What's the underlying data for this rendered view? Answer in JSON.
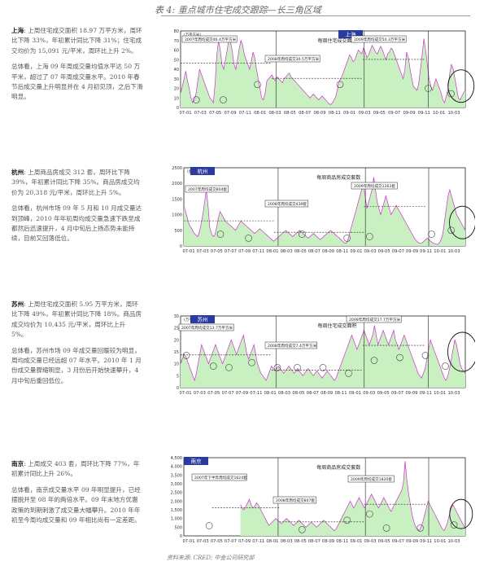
{
  "page": {
    "title": "表 4: 重点城市住宅成交跟踪—长三角区域",
    "source": "资料来源: CRED; 中金公司研究部"
  },
  "colors": {
    "fill": "#c8f0c0",
    "line": "#d030d0",
    "stroke": "#222222",
    "badge": "#2a3aa0"
  },
  "sections": [
    {
      "key": "shanghai",
      "city_label": "上海",
      "paragraphs": [
        {
          "lead": "上海",
          "text": ": 上周住宅成交面积 18.97 万平方米，周环比下降 33%，年初累计同比下降 31%；住宅成交均价为 15,091 元/平米，周环比上升 2%。"
        },
        {
          "lead": "",
          "text": "总体看，上海 09 年周成交量均值水平达 50 万平米，超过了 07 年周成交量水平。2010 年春节后成交量上升明显并在 4 月初见顶，之后下滑明显。"
        }
      ],
      "chart_data": {
        "type": "area",
        "title": "每周住宅成交面积",
        "unit": "(万平方米)",
        "yticks": [
          "80",
          "70",
          "60",
          "50",
          "40",
          "30",
          "20",
          "10",
          "0"
        ],
        "ylim": [
          0,
          80
        ],
        "x_labels": [
          "07-01",
          "07-03",
          "07-05",
          "07-09",
          "07-11",
          "08-01",
          "08-03",
          "08-05",
          "08-07",
          "08-09",
          "08-11",
          "09-01",
          "09-03",
          "09-05",
          "09-07",
          "09-09",
          "09-11",
          "10-01",
          "10-03"
        ],
        "annotations": [
          "2007年周均成交46.4万平方米",
          "2008年周均成交30.5万平方米",
          "2009年周均成交50.3万平方米"
        ],
        "averages": [
          46.4,
          30.5,
          50.3
        ],
        "values": [
          15,
          22,
          30,
          38,
          28,
          20,
          10,
          5,
          8,
          15,
          28,
          40,
          35,
          30,
          25,
          20,
          15,
          10,
          8,
          5,
          25,
          55,
          70,
          60,
          45,
          40,
          50,
          60,
          72,
          68,
          58,
          45,
          40,
          50,
          62,
          70,
          65,
          55,
          50,
          45,
          40,
          48,
          58,
          52,
          40,
          30,
          20,
          10,
          8,
          15,
          28,
          30,
          32,
          34,
          30,
          28,
          32,
          30,
          28,
          26,
          30,
          32,
          34,
          36,
          32,
          30,
          28,
          26,
          24,
          22,
          20,
          18,
          16,
          14,
          12,
          10,
          12,
          14,
          12,
          10,
          8,
          10,
          12,
          10,
          8,
          6,
          4,
          3,
          5,
          8,
          12,
          20,
          28,
          30,
          35,
          40,
          45,
          50,
          55,
          52,
          48,
          50,
          55,
          60,
          58,
          56,
          62,
          58,
          52,
          55,
          60,
          65,
          62,
          58,
          56,
          60,
          64,
          60,
          55,
          50,
          56,
          58,
          62,
          60,
          55,
          50,
          45,
          40,
          35,
          30,
          40,
          58,
          52,
          40,
          30,
          22,
          20,
          18,
          25,
          40,
          55,
          72,
          60,
          45,
          30,
          22,
          18,
          24,
          30,
          25,
          20,
          15,
          8,
          5,
          12,
          20,
          36,
          45,
          40,
          30,
          20,
          10,
          8,
          12,
          15,
          19
        ]
      }
    },
    {
      "key": "hangzhou",
      "city_label": "杭州",
      "paragraphs": [
        {
          "lead": "杭州",
          "text": ": 上周商品房成交 312 套，周环比下降 39%，年初累计同比下降 35%。商品房成交均价为 20,318 元/平米，周环比上升 5%。"
        },
        {
          "lead": "",
          "text": "总体看，杭州市场 09 年 5 月和 10 月成交量达到顶峰，2010 年年初周均成交量急速下跌至成都然后迅速提升，4 月中旬后上扬态势未能持续，目前又回落低位。"
        }
      ],
      "chart_data": {
        "type": "area",
        "title": "每周商品房成交套数",
        "unit": "(套数)",
        "yticks": [
          "2500",
          "2000",
          "1500",
          "1000",
          "500",
          "0"
        ],
        "ylim": [
          0,
          2500
        ],
        "x_labels": [
          "07-01",
          "07-03",
          "07-05",
          "07-07",
          "07-09",
          "07-11",
          "08-01",
          "08-03",
          "08-05",
          "08-07",
          "08-09",
          "08-11",
          "09-01",
          "09-03",
          "09-05",
          "09-07",
          "09-09",
          "09-11",
          "10-01",
          "10-03"
        ],
        "annotations": [
          "2007年周均成交804套",
          "2008年周均成交439套",
          "2009年周均成交1263套"
        ],
        "averages": [
          804,
          439,
          1263
        ],
        "values": [
          1300,
          1100,
          900,
          700,
          600,
          500,
          400,
          350,
          300,
          450,
          700,
          1000,
          1400,
          1800,
          1300,
          600,
          400,
          300,
          350,
          600,
          900,
          1100,
          1000,
          900,
          800,
          750,
          700,
          650,
          600,
          550,
          500,
          600,
          700,
          800,
          750,
          700,
          650,
          600,
          550,
          500,
          450,
          400,
          450,
          500,
          550,
          500,
          450,
          400,
          350,
          300,
          250,
          200,
          150,
          200,
          250,
          300,
          350,
          400,
          450,
          500,
          450,
          400,
          350,
          300,
          350,
          400,
          450,
          500,
          450,
          400,
          350,
          300,
          250,
          300,
          350,
          400,
          350,
          300,
          250,
          200,
          250,
          300,
          350,
          400,
          450,
          500,
          450,
          400,
          350,
          300,
          250,
          200,
          150,
          100,
          80,
          200,
          400,
          600,
          800,
          1000,
          1200,
          1400,
          1600,
          1800,
          2000,
          1600,
          1200,
          1400,
          1600,
          1800,
          2200,
          1800,
          1400,
          1200,
          1000,
          1200,
          1400,
          1600,
          1400,
          1200,
          1000,
          1100,
          1200,
          1300,
          1200,
          1100,
          1000,
          900,
          800,
          700,
          600,
          500,
          400,
          300,
          200,
          150,
          100,
          80,
          100,
          150,
          200,
          250,
          200,
          150,
          100,
          80,
          60,
          50,
          100,
          200,
          400,
          800,
          1200,
          1600,
          1800,
          1600,
          1400,
          1200,
          1000,
          900,
          800,
          700,
          600,
          500
        ]
      }
    },
    {
      "key": "suzhou",
      "city_label": "苏州",
      "paragraphs": [
        {
          "lead": "苏州",
          "text": ": 上周住宅成交面积 5.95 万平方米，周环比下降 49%，年初累计同比下降 18%。商品房成交均价为 10,435 元/平米，周环比上升 5%。"
        },
        {
          "lead": "",
          "text": "总体看，苏州市场 09 年成交量回暖较为明显，周均成交量已经远超 07 年水平。2010 年 1 月份成交量骤缩明显，3 月份后开始快速攀升，4 月中旬后重回低位。"
        }
      ],
      "chart_data": {
        "type": "area",
        "title": "每周住宅成交面积",
        "unit": "(万平方米)",
        "yticks": [
          "30",
          "25",
          "20",
          "15",
          "10",
          "5",
          "0"
        ],
        "ylim": [
          0,
          30
        ],
        "x_labels": [
          "07-01",
          "07-03",
          "07-05",
          "07-07",
          "07-09",
          "07-11",
          "08-01",
          "08-03",
          "08-05",
          "08-07",
          "08-09",
          "08-11",
          "09-01",
          "09-03",
          "09-05",
          "09-07",
          "09-09",
          "09-11",
          "10-01",
          "10-03"
        ],
        "annotations": [
          "2007年周均成交13.7万平方米",
          "2008年周均成交7.4万平方米",
          "2009年周均成交17.7万平方米"
        ],
        "averages": [
          13.7,
          7.4,
          17.7
        ],
        "values": [
          10,
          12,
          14,
          13,
          11,
          9,
          7,
          5,
          3,
          6,
          10,
          14,
          18,
          16,
          14,
          12,
          10,
          12,
          14,
          16,
          18,
          16,
          14,
          12,
          10,
          12,
          14,
          16,
          18,
          20,
          18,
          16,
          14,
          16,
          18,
          20,
          22,
          18,
          14,
          12,
          14,
          16,
          18,
          14,
          10,
          8,
          6,
          5,
          4,
          3,
          5,
          7,
          9,
          8,
          7,
          8,
          9,
          8,
          7,
          6,
          7,
          8,
          9,
          8,
          7,
          6,
          7,
          8,
          7,
          6,
          5,
          6,
          7,
          8,
          7,
          6,
          5,
          6,
          7,
          6,
          5,
          4,
          5,
          6,
          7,
          6,
          5,
          4,
          3,
          4,
          6,
          8,
          10,
          12,
          14,
          16,
          18,
          20,
          22,
          20,
          18,
          16,
          18,
          20,
          22,
          24,
          22,
          20,
          18,
          20,
          22,
          26,
          22,
          18,
          20,
          22,
          24,
          22,
          20,
          18,
          20,
          22,
          24,
          20,
          18,
          16,
          18,
          20,
          22,
          20,
          18,
          16,
          14,
          12,
          10,
          8,
          6,
          5,
          4,
          6,
          8,
          12,
          16,
          20,
          18,
          16,
          14,
          12,
          10,
          8,
          6,
          4,
          3,
          5,
          8,
          12,
          16,
          20,
          18,
          14,
          10,
          8,
          7,
          6
        ]
      }
    },
    {
      "key": "nanjing",
      "city_label": "南京",
      "paragraphs": [
        {
          "lead": "南京",
          "text": ": 上周成交 403 套，周环比下降 77%，年初累计同比上升 26%。"
        },
        {
          "lead": "",
          "text": "总体看，南京成交量水平 09 年明显提升，已经摆脱并至 08 年的两倍水平。09 年末地方优惠政策的到期刺激了成交量大幅攀升。2010 年年初至今周均成交量和 09 年相比尚有一定差距。"
        }
      ],
      "chart_data": {
        "type": "area",
        "title": "每周商品房成交套数",
        "unit": "(套数)",
        "yticks": [
          "4,500",
          "4,000",
          "3,500",
          "3,000",
          "2,500",
          "2,000",
          "1,500",
          "1,000",
          "500",
          "0"
        ],
        "ylim": [
          0,
          4500
        ],
        "x_labels": [
          "07-01",
          "07-03",
          "07-05",
          "07-07",
          "07-09",
          "07-11",
          "08-01",
          "08-03",
          "08-05",
          "08-07",
          "08-09",
          "08-11",
          "09-01",
          "09-03",
          "09-05",
          "09-07",
          "09-09",
          "09-11",
          "10-01",
          "10-03"
        ],
        "annotations": [
          "2007年下半年周均成交1624套",
          "2008年周均成交807套",
          "2009年周均成交1820套"
        ],
        "averages": [
          1624,
          807,
          1820
        ],
        "values": [
          null,
          null,
          null,
          null,
          null,
          null,
          null,
          null,
          null,
          null,
          null,
          null,
          null,
          null,
          null,
          null,
          null,
          null,
          null,
          null,
          null,
          null,
          null,
          null,
          null,
          null,
          null,
          null,
          null,
          null,
          null,
          null,
          1800,
          1600,
          1500,
          1700,
          1900,
          2100,
          1800,
          1600,
          1700,
          1900,
          1800,
          1600,
          1400,
          1200,
          1000,
          800,
          600,
          700,
          800,
          900,
          1000,
          900,
          800,
          700,
          800,
          900,
          1000,
          900,
          800,
          700,
          600,
          700,
          800,
          900,
          800,
          700,
          600,
          500,
          600,
          700,
          800,
          700,
          600,
          500,
          600,
          700,
          800,
          900,
          800,
          700,
          600,
          500,
          400,
          300,
          400,
          600,
          800,
          1000,
          1200,
          1400,
          1600,
          1800,
          2000,
          1800,
          1600,
          1800,
          2000,
          2200,
          2000,
          1800,
          1600,
          1800,
          2000,
          2200,
          2400,
          2200,
          2000,
          1800,
          1600,
          1800,
          2000,
          2200,
          2000,
          1800,
          1600,
          1400,
          1600,
          1800,
          2000,
          2200,
          2400,
          2600,
          3000,
          4300,
          3200,
          2400,
          1800,
          1200,
          800,
          500,
          400,
          300,
          500,
          800,
          1200,
          1600,
          2000,
          1800,
          1600,
          1400,
          1200,
          1000,
          800,
          600,
          400,
          300,
          500,
          800,
          1200,
          1600,
          1800,
          1600,
          1400,
          1200,
          1000,
          800,
          600,
          400
        ]
      }
    }
  ]
}
